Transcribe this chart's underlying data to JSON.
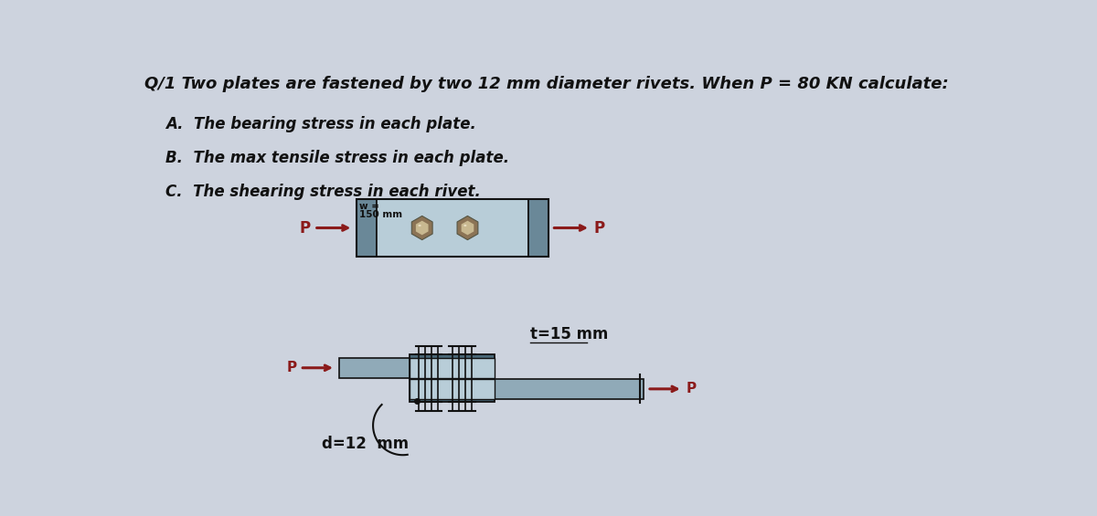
{
  "bg_color": "#cdd3de",
  "title_line": "Q/1 Two plates are fastened by two 12 mm diameter rivets. When P = 80 KN calculate:",
  "items": [
    "A.  The bearing stress in each plate.",
    "B.  The max tensile stress in each plate.",
    "C.  The shearing stress in each rivet."
  ],
  "label_w": "w =",
  "label_150mm": "150 mm",
  "label_P": "P",
  "label_t15": "t=15 mm",
  "label_d12": "d=12  mm",
  "arrow_color": "#8B1a1a",
  "plate_light": "#b8cdd8",
  "plate_mid": "#90aab8",
  "plate_dark": "#6a8898",
  "plate_darker": "#4a6878",
  "rivet_outer": "#9e8060",
  "rivet_inner": "#d0c0a0",
  "line_color": "#111111",
  "text_color": "#111111",
  "title_fontsize": 13,
  "item_fontsize": 12
}
